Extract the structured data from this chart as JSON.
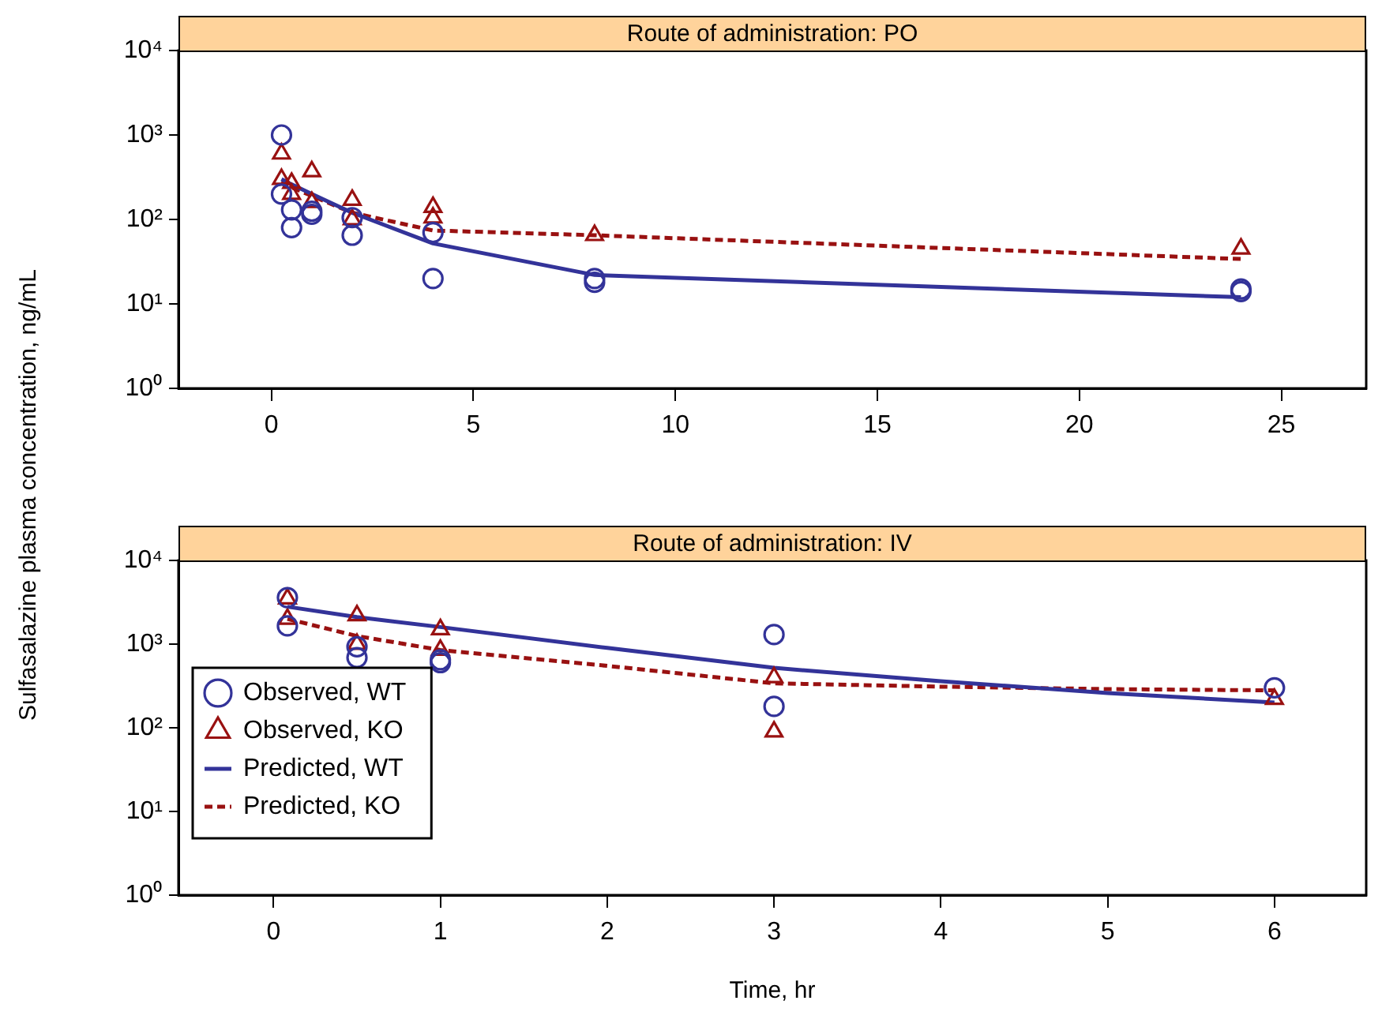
{
  "chart_data": [
    {
      "type": "scatter",
      "title": "Route of administration: PO",
      "ylabel": "Sulfasalazine plasma concentration, ng/mL",
      "log": "y",
      "grid": false,
      "legend": false,
      "xlim": [
        -2.3,
        27.1
      ],
      "xticks": [
        0,
        5,
        10,
        15,
        20,
        25
      ],
      "ylim": [
        1,
        10000
      ],
      "yticks": [
        {
          "value": 1,
          "label": "10⁰"
        },
        {
          "value": 10,
          "label": "10¹"
        },
        {
          "value": 100,
          "label": "10²"
        },
        {
          "value": 1000,
          "label": "10³"
        },
        {
          "value": 10000,
          "label": "10⁴"
        }
      ],
      "series": [
        {
          "type": "scatter",
          "marker": "circle",
          "color": "#333399",
          "x": [
            0.25,
            0.25,
            0.5,
            0.5,
            1,
            1,
            2,
            2,
            4,
            4,
            8,
            8,
            24,
            24
          ],
          "values": [
            1000,
            200,
            130,
            80,
            115,
            125,
            105,
            65,
            70,
            20,
            18,
            20,
            15,
            14
          ]
        },
        {
          "type": "scatter",
          "marker": "triangle",
          "color": "#991111",
          "x": [
            0.25,
            0.25,
            0.5,
            0.5,
            1,
            1,
            2,
            2,
            4,
            4,
            8,
            24
          ],
          "values": [
            600,
            300,
            270,
            200,
            370,
            160,
            170,
            100,
            140,
            105,
            65,
            45
          ]
        },
        {
          "type": "line",
          "marker": "none",
          "line_style": "solid",
          "color": "#333399",
          "x": [
            0.25,
            0.5,
            1,
            2,
            4,
            8,
            24
          ],
          "values": [
            300,
            260,
            200,
            120,
            52,
            22,
            12
          ]
        },
        {
          "type": "line",
          "marker": "none",
          "line_style": "dashed",
          "color": "#991111",
          "x": [
            0.25,
            0.5,
            1,
            2,
            4,
            8,
            24
          ],
          "values": [
            280,
            240,
            190,
            120,
            74,
            65,
            34
          ]
        }
      ]
    },
    {
      "type": "scatter",
      "title": "Route of administration: IV",
      "xlabel": "Time, hr",
      "log": "y",
      "grid": false,
      "legend": "bottom left",
      "xlim": [
        -0.57,
        6.55
      ],
      "xticks": [
        0,
        1,
        2,
        3,
        4,
        5,
        6
      ],
      "ylim": [
        1,
        10000
      ],
      "yticks": [
        {
          "value": 1,
          "label": "10⁰"
        },
        {
          "value": 10,
          "label": "10¹"
        },
        {
          "value": 100,
          "label": "10²"
        },
        {
          "value": 1000,
          "label": "10³"
        },
        {
          "value": 10000,
          "label": "10⁴"
        }
      ],
      "series": [
        {
          "name": "Observed, WT",
          "type": "scatter",
          "marker": "circle",
          "color": "#333399",
          "x": [
            0.083,
            0.083,
            0.5,
            0.5,
            1,
            1,
            3,
            3,
            6
          ],
          "values": [
            3600,
            1650,
            930,
            690,
            600,
            650,
            1300,
            180,
            300
          ]
        },
        {
          "name": "Observed, KO",
          "type": "scatter",
          "marker": "triangle",
          "color": "#991111",
          "x": [
            0.083,
            0.083,
            0.5,
            0.5,
            1,
            1,
            3,
            3,
            6
          ],
          "values": [
            3500,
            2000,
            2200,
            1000,
            1500,
            850,
            400,
            90,
            220
          ]
        },
        {
          "name": "Predicted, WT",
          "type": "line",
          "marker": "none",
          "line_style": "solid",
          "color": "#333399",
          "x": [
            0.083,
            0.5,
            1,
            2,
            3,
            4,
            5,
            6
          ],
          "values": [
            2800,
            2100,
            1600,
            900,
            520,
            360,
            260,
            200
          ]
        },
        {
          "name": "Predicted, KO",
          "type": "line",
          "marker": "none",
          "line_style": "dashed",
          "color": "#991111",
          "x": [
            0.083,
            0.5,
            1,
            2,
            3,
            4,
            5,
            6
          ],
          "values": [
            2000,
            1250,
            850,
            550,
            340,
            310,
            290,
            280
          ]
        }
      ]
    }
  ]
}
